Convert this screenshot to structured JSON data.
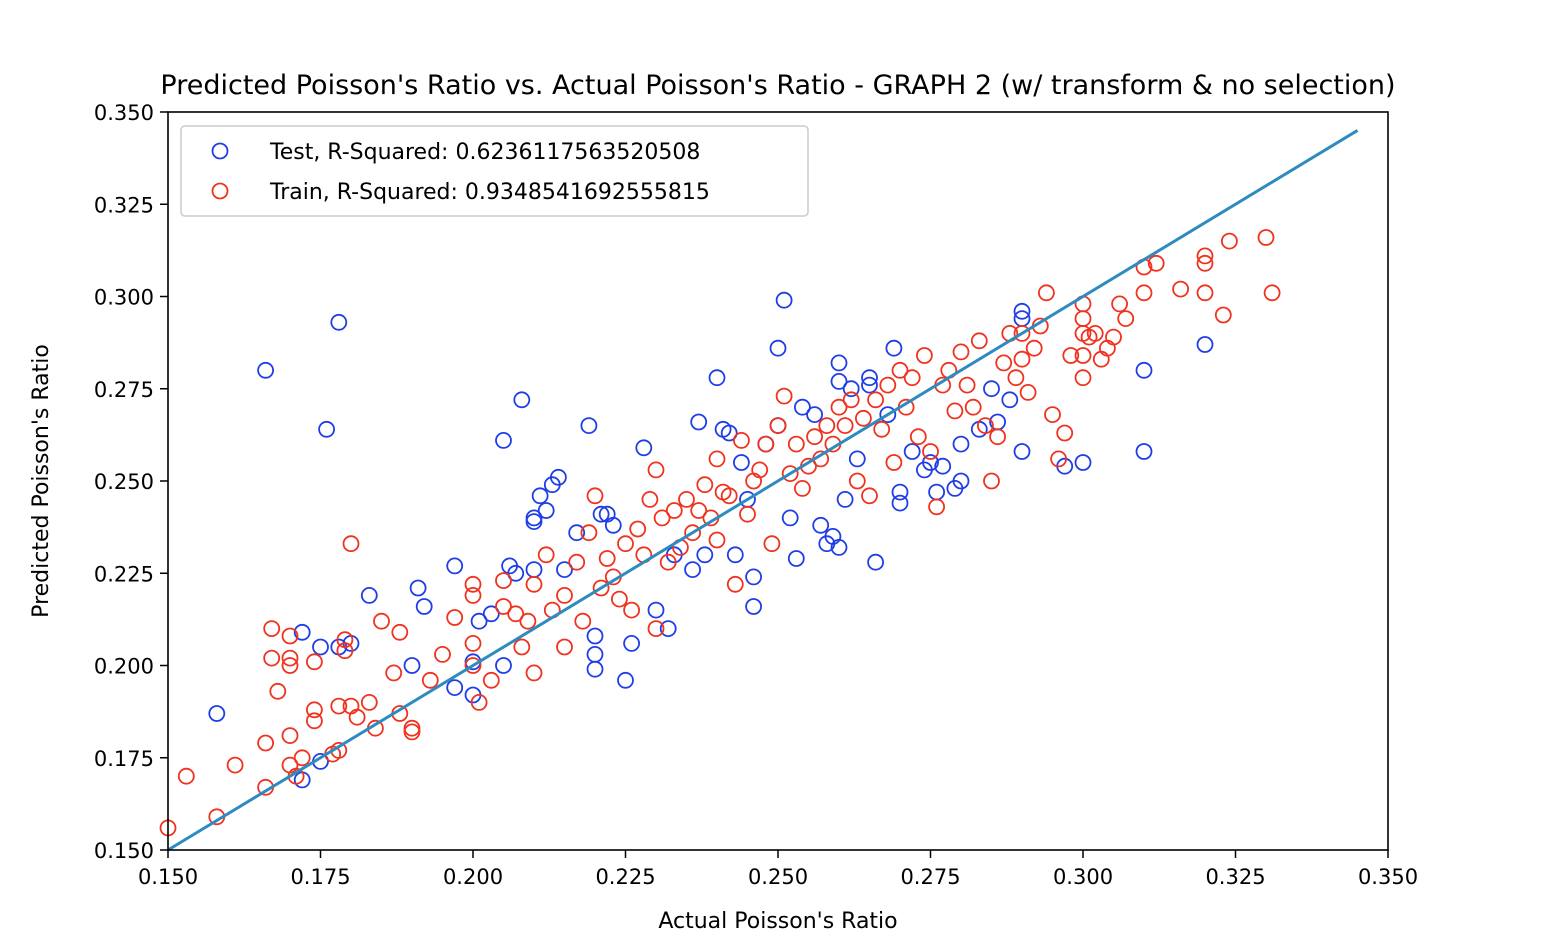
{
  "chart_data": {
    "type": "scatter",
    "title": "Predicted Poisson's Ratio vs. Actual Poisson's Ratio - GRAPH 2 (w/ transform & no selection)",
    "xlabel": "Actual Poisson's Ratio",
    "ylabel": "Predicted Poisson's Ratio",
    "xlim": [
      0.15,
      0.35
    ],
    "ylim": [
      0.15,
      0.35
    ],
    "xticks": [
      "0.150",
      "0.175",
      "0.200",
      "0.225",
      "0.250",
      "0.275",
      "0.300",
      "0.325",
      "0.350"
    ],
    "yticks": [
      "0.150",
      "0.175",
      "0.200",
      "0.225",
      "0.250",
      "0.275",
      "0.300",
      "0.325",
      "0.350"
    ],
    "grid": false,
    "legend_position": "top-left",
    "reference_line": {
      "x": [
        0.15,
        0.345
      ],
      "y": [
        0.15,
        0.345
      ],
      "color": "#2e8bc0"
    },
    "series": [
      {
        "name": "Test, R-Squared: 0.6236117563520508",
        "color": "#1f3ee6",
        "marker": "open-circle",
        "points": [
          [
            0.158,
            0.187
          ],
          [
            0.166,
            0.28
          ],
          [
            0.172,
            0.169
          ],
          [
            0.172,
            0.209
          ],
          [
            0.175,
            0.174
          ],
          [
            0.175,
            0.205
          ],
          [
            0.176,
            0.264
          ],
          [
            0.178,
            0.293
          ],
          [
            0.178,
            0.205
          ],
          [
            0.18,
            0.206
          ],
          [
            0.183,
            0.219
          ],
          [
            0.19,
            0.2
          ],
          [
            0.191,
            0.221
          ],
          [
            0.192,
            0.216
          ],
          [
            0.197,
            0.227
          ],
          [
            0.197,
            0.194
          ],
          [
            0.2,
            0.192
          ],
          [
            0.2,
            0.201
          ],
          [
            0.201,
            0.212
          ],
          [
            0.203,
            0.214
          ],
          [
            0.205,
            0.261
          ],
          [
            0.205,
            0.2
          ],
          [
            0.206,
            0.227
          ],
          [
            0.207,
            0.225
          ],
          [
            0.208,
            0.272
          ],
          [
            0.21,
            0.226
          ],
          [
            0.21,
            0.239
          ],
          [
            0.21,
            0.24
          ],
          [
            0.211,
            0.246
          ],
          [
            0.212,
            0.242
          ],
          [
            0.213,
            0.249
          ],
          [
            0.214,
            0.251
          ],
          [
            0.215,
            0.226
          ],
          [
            0.217,
            0.236
          ],
          [
            0.219,
            0.265
          ],
          [
            0.22,
            0.199
          ],
          [
            0.22,
            0.203
          ],
          [
            0.22,
            0.208
          ],
          [
            0.221,
            0.241
          ],
          [
            0.222,
            0.241
          ],
          [
            0.223,
            0.238
          ],
          [
            0.225,
            0.196
          ],
          [
            0.226,
            0.206
          ],
          [
            0.228,
            0.259
          ],
          [
            0.23,
            0.215
          ],
          [
            0.232,
            0.21
          ],
          [
            0.233,
            0.23
          ],
          [
            0.236,
            0.226
          ],
          [
            0.237,
            0.266
          ],
          [
            0.238,
            0.23
          ],
          [
            0.24,
            0.278
          ],
          [
            0.241,
            0.264
          ],
          [
            0.242,
            0.263
          ],
          [
            0.243,
            0.23
          ],
          [
            0.244,
            0.255
          ],
          [
            0.245,
            0.245
          ],
          [
            0.246,
            0.216
          ],
          [
            0.246,
            0.224
          ],
          [
            0.248,
            0.26
          ],
          [
            0.25,
            0.286
          ],
          [
            0.25,
            0.265
          ],
          [
            0.251,
            0.299
          ],
          [
            0.252,
            0.24
          ],
          [
            0.253,
            0.229
          ],
          [
            0.254,
            0.27
          ],
          [
            0.256,
            0.268
          ],
          [
            0.257,
            0.238
          ],
          [
            0.258,
            0.233
          ],
          [
            0.259,
            0.235
          ],
          [
            0.26,
            0.282
          ],
          [
            0.26,
            0.277
          ],
          [
            0.26,
            0.232
          ],
          [
            0.261,
            0.245
          ],
          [
            0.262,
            0.275
          ],
          [
            0.263,
            0.256
          ],
          [
            0.265,
            0.278
          ],
          [
            0.265,
            0.276
          ],
          [
            0.266,
            0.228
          ],
          [
            0.268,
            0.268
          ],
          [
            0.269,
            0.286
          ],
          [
            0.27,
            0.247
          ],
          [
            0.27,
            0.244
          ],
          [
            0.272,
            0.258
          ],
          [
            0.274,
            0.253
          ],
          [
            0.275,
            0.255
          ],
          [
            0.276,
            0.247
          ],
          [
            0.277,
            0.254
          ],
          [
            0.279,
            0.248
          ],
          [
            0.28,
            0.25
          ],
          [
            0.28,
            0.26
          ],
          [
            0.283,
            0.264
          ],
          [
            0.285,
            0.275
          ],
          [
            0.286,
            0.266
          ],
          [
            0.288,
            0.272
          ],
          [
            0.29,
            0.296
          ],
          [
            0.29,
            0.294
          ],
          [
            0.29,
            0.258
          ],
          [
            0.297,
            0.254
          ],
          [
            0.3,
            0.255
          ],
          [
            0.31,
            0.28
          ],
          [
            0.31,
            0.258
          ],
          [
            0.32,
            0.287
          ]
        ]
      },
      {
        "name": "Train, R-Squared: 0.9348541692555815",
        "color": "#f0321e",
        "marker": "open-circle",
        "points": [
          [
            0.15,
            0.156
          ],
          [
            0.153,
            0.17
          ],
          [
            0.158,
            0.159
          ],
          [
            0.161,
            0.173
          ],
          [
            0.166,
            0.167
          ],
          [
            0.166,
            0.179
          ],
          [
            0.167,
            0.21
          ],
          [
            0.167,
            0.202
          ],
          [
            0.168,
            0.193
          ],
          [
            0.17,
            0.208
          ],
          [
            0.17,
            0.202
          ],
          [
            0.17,
            0.2
          ],
          [
            0.17,
            0.181
          ],
          [
            0.17,
            0.173
          ],
          [
            0.171,
            0.17
          ],
          [
            0.172,
            0.175
          ],
          [
            0.174,
            0.185
          ],
          [
            0.174,
            0.188
          ],
          [
            0.174,
            0.201
          ],
          [
            0.177,
            0.176
          ],
          [
            0.178,
            0.189
          ],
          [
            0.178,
            0.177
          ],
          [
            0.179,
            0.207
          ],
          [
            0.179,
            0.204
          ],
          [
            0.18,
            0.233
          ],
          [
            0.18,
            0.189
          ],
          [
            0.181,
            0.186
          ],
          [
            0.183,
            0.19
          ],
          [
            0.184,
            0.183
          ],
          [
            0.185,
            0.212
          ],
          [
            0.187,
            0.198
          ],
          [
            0.188,
            0.187
          ],
          [
            0.188,
            0.209
          ],
          [
            0.19,
            0.182
          ],
          [
            0.19,
            0.183
          ],
          [
            0.193,
            0.196
          ],
          [
            0.195,
            0.203
          ],
          [
            0.197,
            0.213
          ],
          [
            0.2,
            0.222
          ],
          [
            0.2,
            0.219
          ],
          [
            0.2,
            0.206
          ],
          [
            0.2,
            0.2
          ],
          [
            0.201,
            0.19
          ],
          [
            0.203,
            0.196
          ],
          [
            0.205,
            0.216
          ],
          [
            0.205,
            0.223
          ],
          [
            0.207,
            0.214
          ],
          [
            0.208,
            0.205
          ],
          [
            0.209,
            0.212
          ],
          [
            0.21,
            0.198
          ],
          [
            0.21,
            0.222
          ],
          [
            0.212,
            0.23
          ],
          [
            0.213,
            0.215
          ],
          [
            0.215,
            0.219
          ],
          [
            0.215,
            0.205
          ],
          [
            0.217,
            0.228
          ],
          [
            0.218,
            0.212
          ],
          [
            0.219,
            0.236
          ],
          [
            0.22,
            0.246
          ],
          [
            0.221,
            0.221
          ],
          [
            0.222,
            0.229
          ],
          [
            0.223,
            0.224
          ],
          [
            0.224,
            0.218
          ],
          [
            0.225,
            0.233
          ],
          [
            0.226,
            0.215
          ],
          [
            0.227,
            0.237
          ],
          [
            0.228,
            0.23
          ],
          [
            0.229,
            0.245
          ],
          [
            0.23,
            0.253
          ],
          [
            0.23,
            0.21
          ],
          [
            0.231,
            0.24
          ],
          [
            0.232,
            0.228
          ],
          [
            0.233,
            0.242
          ],
          [
            0.234,
            0.232
          ],
          [
            0.235,
            0.245
          ],
          [
            0.236,
            0.236
          ],
          [
            0.237,
            0.242
          ],
          [
            0.238,
            0.249
          ],
          [
            0.239,
            0.24
          ],
          [
            0.24,
            0.256
          ],
          [
            0.24,
            0.234
          ],
          [
            0.241,
            0.247
          ],
          [
            0.242,
            0.246
          ],
          [
            0.243,
            0.222
          ],
          [
            0.244,
            0.261
          ],
          [
            0.245,
            0.241
          ],
          [
            0.246,
            0.25
          ],
          [
            0.247,
            0.253
          ],
          [
            0.248,
            0.26
          ],
          [
            0.249,
            0.233
          ],
          [
            0.25,
            0.265
          ],
          [
            0.251,
            0.273
          ],
          [
            0.252,
            0.252
          ],
          [
            0.253,
            0.26
          ],
          [
            0.254,
            0.248
          ],
          [
            0.255,
            0.254
          ],
          [
            0.256,
            0.262
          ],
          [
            0.257,
            0.256
          ],
          [
            0.258,
            0.265
          ],
          [
            0.259,
            0.26
          ],
          [
            0.26,
            0.27
          ],
          [
            0.261,
            0.265
          ],
          [
            0.262,
            0.272
          ],
          [
            0.263,
            0.25
          ],
          [
            0.264,
            0.267
          ],
          [
            0.265,
            0.246
          ],
          [
            0.266,
            0.272
          ],
          [
            0.267,
            0.264
          ],
          [
            0.268,
            0.276
          ],
          [
            0.269,
            0.255
          ],
          [
            0.27,
            0.28
          ],
          [
            0.271,
            0.27
          ],
          [
            0.272,
            0.278
          ],
          [
            0.273,
            0.262
          ],
          [
            0.274,
            0.284
          ],
          [
            0.275,
            0.258
          ],
          [
            0.276,
            0.243
          ],
          [
            0.277,
            0.276
          ],
          [
            0.278,
            0.28
          ],
          [
            0.279,
            0.269
          ],
          [
            0.28,
            0.285
          ],
          [
            0.281,
            0.276
          ],
          [
            0.282,
            0.27
          ],
          [
            0.283,
            0.288
          ],
          [
            0.284,
            0.265
          ],
          [
            0.285,
            0.25
          ],
          [
            0.286,
            0.262
          ],
          [
            0.287,
            0.282
          ],
          [
            0.288,
            0.29
          ],
          [
            0.289,
            0.278
          ],
          [
            0.29,
            0.29
          ],
          [
            0.29,
            0.283
          ],
          [
            0.291,
            0.274
          ],
          [
            0.292,
            0.286
          ],
          [
            0.293,
            0.292
          ],
          [
            0.294,
            0.301
          ],
          [
            0.295,
            0.268
          ],
          [
            0.296,
            0.256
          ],
          [
            0.297,
            0.263
          ],
          [
            0.298,
            0.284
          ],
          [
            0.3,
            0.298
          ],
          [
            0.3,
            0.294
          ],
          [
            0.3,
            0.29
          ],
          [
            0.3,
            0.284
          ],
          [
            0.3,
            0.278
          ],
          [
            0.301,
            0.289
          ],
          [
            0.302,
            0.29
          ],
          [
            0.303,
            0.283
          ],
          [
            0.304,
            0.286
          ],
          [
            0.305,
            0.289
          ],
          [
            0.306,
            0.298
          ],
          [
            0.307,
            0.294
          ],
          [
            0.31,
            0.301
          ],
          [
            0.31,
            0.308
          ],
          [
            0.312,
            0.309
          ],
          [
            0.316,
            0.302
          ],
          [
            0.32,
            0.311
          ],
          [
            0.32,
            0.309
          ],
          [
            0.32,
            0.301
          ],
          [
            0.323,
            0.295
          ],
          [
            0.324,
            0.315
          ],
          [
            0.33,
            0.316
          ],
          [
            0.331,
            0.301
          ]
        ]
      }
    ]
  }
}
